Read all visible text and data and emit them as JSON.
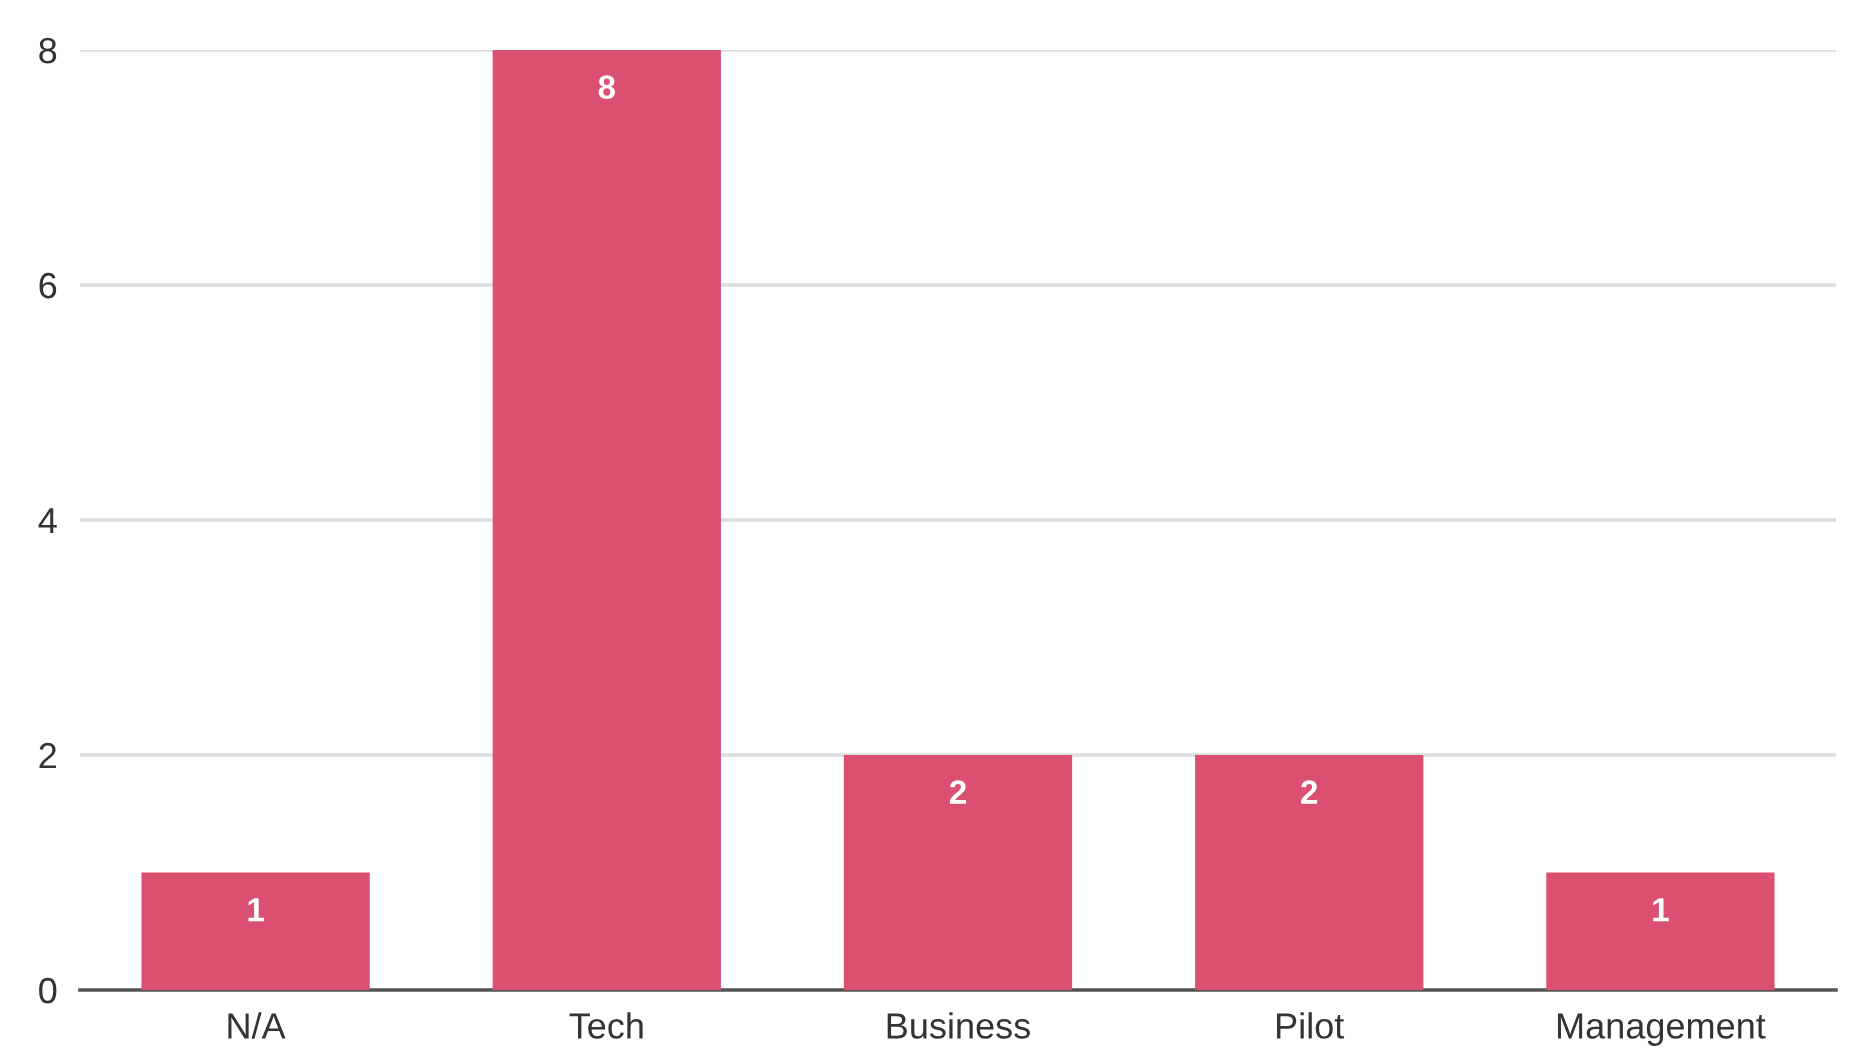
{
  "chart_data": {
    "type": "bar",
    "categories": [
      "N/A",
      "Tech",
      "Business",
      "Pilot",
      "Management"
    ],
    "values": [
      1,
      8,
      2,
      2,
      1
    ],
    "color": "#db5070",
    "ylim": [
      0,
      8
    ],
    "yticks": [
      0,
      2,
      4,
      6,
      8
    ],
    "grid": "y",
    "data_labels": true
  }
}
